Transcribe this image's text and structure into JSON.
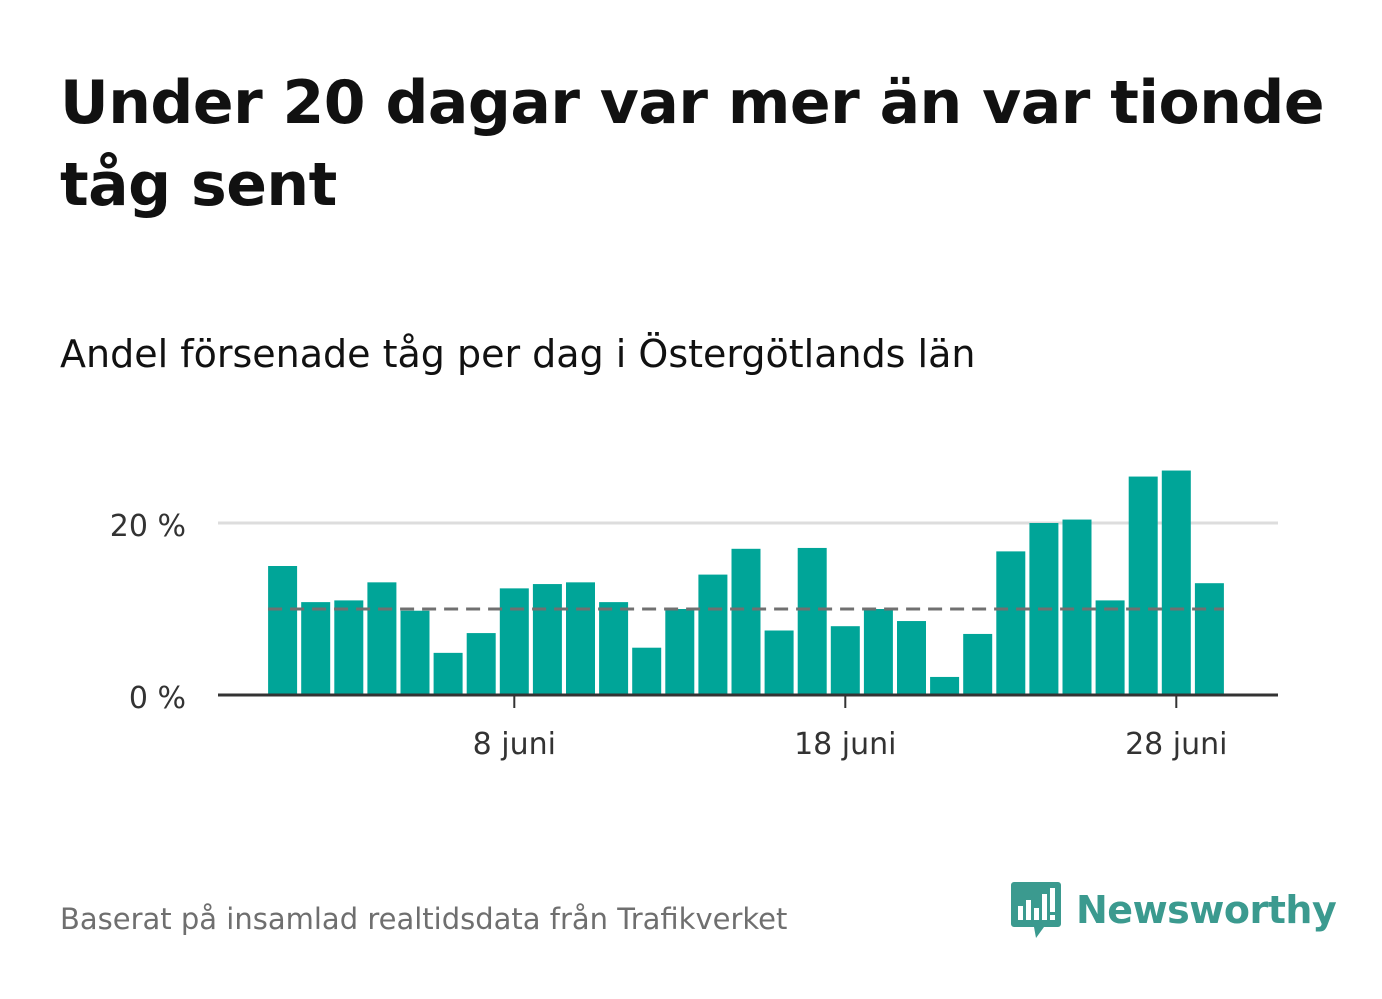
{
  "title": "Under 20 dagar var mer än var tionde tåg sent",
  "subtitle": "Andel försenade tåg per dag i Östergötlands län",
  "footer": {
    "source": "Baserat på insamlad realtidsdata från Trafikverket",
    "brand": "Newsworthy",
    "brand_icon": "newsworthy-logo-icon"
  },
  "colors": {
    "bar": "#00a598",
    "reference_line": "#707070",
    "grid": "#dddddd",
    "axis": "#333333",
    "brand": "#3b9a8f"
  },
  "chart_data": {
    "type": "bar",
    "x_unit": "day of June",
    "x": [
      1,
      2,
      3,
      4,
      5,
      6,
      7,
      8,
      9,
      10,
      11,
      12,
      13,
      14,
      15,
      16,
      17,
      18,
      19,
      20,
      21,
      22,
      23,
      24,
      25,
      26,
      27,
      28,
      29
    ],
    "values": [
      15,
      10.8,
      11,
      13.1,
      9.8,
      4.9,
      7.2,
      12.4,
      12.9,
      13.1,
      10.8,
      5.5,
      10,
      14,
      17,
      7.5,
      17.1,
      8,
      10,
      8.6,
      2.1,
      7.1,
      16.7,
      20,
      20.4,
      11,
      25.4,
      26.1,
      13
    ],
    "reference_line": 10,
    "ylim": [
      0,
      28
    ],
    "yticks": [
      0,
      20
    ],
    "ytick_labels": [
      "0 %",
      "20 %"
    ],
    "xticks": [
      8,
      18,
      28
    ],
    "xtick_labels": [
      "8 juni",
      "18 juni",
      "28 juni"
    ],
    "xlabel": "",
    "ylabel": "",
    "grid": true
  }
}
